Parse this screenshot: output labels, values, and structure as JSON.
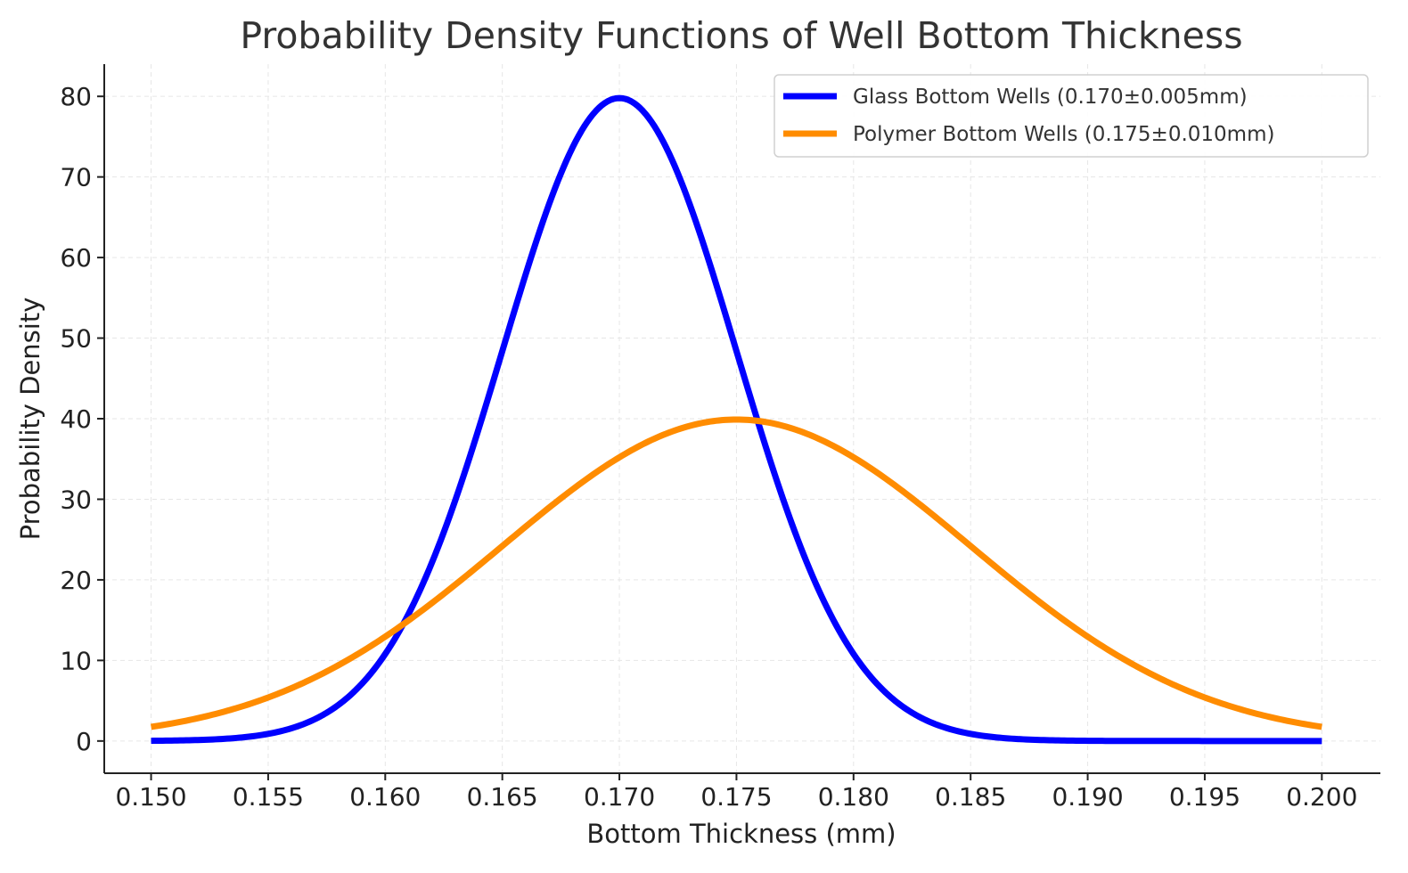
{
  "chart_data": {
    "type": "line",
    "title": "Probability Density Functions of Well Bottom Thickness",
    "xlabel": "Bottom Thickness (mm)",
    "ylabel": "Probability Density",
    "xlim": [
      0.148,
      0.2025
    ],
    "ylim": [
      -4,
      84
    ],
    "xticks": [
      0.15,
      0.155,
      0.16,
      0.165,
      0.17,
      0.175,
      0.18,
      0.185,
      0.19,
      0.195,
      0.2
    ],
    "xtick_labels": [
      "0.150",
      "0.155",
      "0.160",
      "0.165",
      "0.170",
      "0.175",
      "0.180",
      "0.185",
      "0.190",
      "0.195",
      "0.200"
    ],
    "yticks": [
      0,
      10,
      20,
      30,
      40,
      50,
      60,
      70,
      80
    ],
    "ytick_labels": [
      "0",
      "10",
      "20",
      "30",
      "40",
      "50",
      "60",
      "70",
      "80"
    ],
    "grid": true,
    "legend_position": "top-right",
    "x": [
      0.15,
      0.1525,
      0.155,
      0.1575,
      0.16,
      0.1625,
      0.165,
      0.1675,
      0.17,
      0.1725,
      0.175,
      0.1775,
      0.18,
      0.1825,
      0.185,
      0.1875,
      0.19,
      0.1925,
      0.195,
      0.1975,
      0.2
    ],
    "series": [
      {
        "name": "Glass Bottom Wells (0.170±0.005mm)",
        "color": "#0000ff",
        "mean": 0.17,
        "std": 0.005,
        "values": [
          0.03,
          0.18,
          1.08,
          3.5,
          10.8,
          26.0,
          48.4,
          70.4,
          79.8,
          70.4,
          48.4,
          26.0,
          10.8,
          3.5,
          1.08,
          0.18,
          0.03,
          0.0,
          0.0,
          0.0,
          0.0
        ]
      },
      {
        "name": "Polymer Bottom Wells (0.175±0.010mm)",
        "color": "#ff8c00",
        "mean": 0.175,
        "std": 0.01,
        "values": [
          1.75,
          3.1,
          5.4,
          8.7,
          13.0,
          18.3,
          24.2,
          30.1,
          35.2,
          38.7,
          39.9,
          38.7,
          35.2,
          30.1,
          24.2,
          18.3,
          13.0,
          8.7,
          5.4,
          3.1,
          1.75
        ]
      }
    ]
  }
}
